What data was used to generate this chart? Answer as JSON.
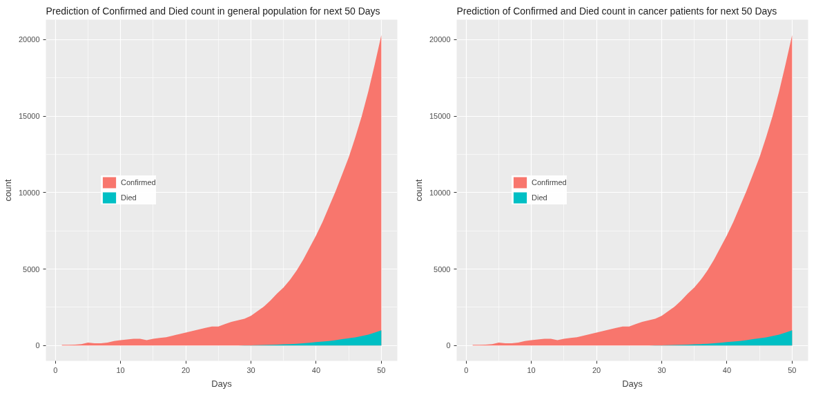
{
  "chart_data": [
    {
      "type": "area",
      "title": "Prediction of Confirmed and Died count in general population for next 50 Days",
      "xlabel": "Days",
      "ylabel": "count",
      "x": [
        1,
        2,
        3,
        4,
        5,
        6,
        7,
        8,
        9,
        10,
        11,
        12,
        13,
        14,
        15,
        16,
        17,
        18,
        19,
        20,
        21,
        22,
        23,
        24,
        25,
        26,
        27,
        28,
        29,
        30,
        31,
        32,
        33,
        34,
        35,
        36,
        37,
        38,
        39,
        40,
        41,
        42,
        43,
        44,
        45,
        46,
        47,
        48,
        49,
        50
      ],
      "series": [
        {
          "name": "Confirmed",
          "color": "#f8766d",
          "values": [
            50,
            50,
            60,
            100,
            200,
            150,
            150,
            200,
            300,
            350,
            400,
            450,
            450,
            350,
            450,
            500,
            550,
            650,
            750,
            850,
            950,
            1050,
            1150,
            1250,
            1250,
            1400,
            1550,
            1650,
            1750,
            1950,
            2250,
            2550,
            2950,
            3400,
            3800,
            4300,
            4900,
            5600,
            6400,
            7200,
            8100,
            9100,
            10100,
            11200,
            12300,
            13600,
            15000,
            16600,
            18400,
            20300
          ]
        },
        {
          "name": "Died",
          "color": "#00bfc4",
          "values": [
            null,
            null,
            null,
            null,
            null,
            null,
            null,
            null,
            null,
            null,
            null,
            null,
            null,
            null,
            null,
            null,
            null,
            0,
            0,
            0,
            0,
            0,
            0,
            10,
            10,
            10,
            10,
            10,
            20,
            20,
            30,
            40,
            50,
            60,
            80,
            100,
            120,
            150,
            190,
            230,
            260,
            300,
            350,
            420,
            480,
            540,
            620,
            720,
            850,
            1000
          ]
        }
      ],
      "xlim": [
        -1.45,
        52.45
      ],
      "ylim": [
        -1000,
        21300
      ],
      "xticks": [
        0,
        10,
        20,
        30,
        40,
        50
      ],
      "yticks": [
        0,
        5000,
        10000,
        15000,
        20000
      ],
      "grid": true,
      "legend": "left"
    },
    {
      "type": "area",
      "title": "Prediction of Confirmed and Died count in cancer patients for next 50 Days",
      "xlabel": "Days",
      "ylabel": "count",
      "x": [
        1,
        2,
        3,
        4,
        5,
        6,
        7,
        8,
        9,
        10,
        11,
        12,
        13,
        14,
        15,
        16,
        17,
        18,
        19,
        20,
        21,
        22,
        23,
        24,
        25,
        26,
        27,
        28,
        29,
        30,
        31,
        32,
        33,
        34,
        35,
        36,
        37,
        38,
        39,
        40,
        41,
        42,
        43,
        44,
        45,
        46,
        47,
        48,
        49,
        50
      ],
      "series": [
        {
          "name": "Confirmed",
          "color": "#f8766d",
          "values": [
            50,
            50,
            60,
            100,
            200,
            150,
            150,
            200,
            300,
            350,
            400,
            450,
            450,
            350,
            450,
            500,
            550,
            650,
            750,
            850,
            950,
            1050,
            1150,
            1250,
            1250,
            1400,
            1550,
            1650,
            1750,
            1950,
            2250,
            2550,
            2950,
            3400,
            3800,
            4300,
            4900,
            5600,
            6400,
            7200,
            8100,
            9100,
            10100,
            11200,
            12300,
            13600,
            15000,
            16600,
            18400,
            20300
          ]
        },
        {
          "name": "Died",
          "color": "#00bfc4",
          "values": [
            null,
            null,
            null,
            null,
            null,
            null,
            null,
            null,
            null,
            null,
            null,
            null,
            null,
            null,
            null,
            null,
            null,
            0,
            0,
            0,
            0,
            0,
            0,
            10,
            10,
            10,
            10,
            10,
            20,
            20,
            30,
            40,
            50,
            60,
            80,
            100,
            120,
            150,
            190,
            230,
            260,
            300,
            350,
            420,
            480,
            540,
            620,
            720,
            850,
            1000
          ]
        }
      ],
      "xlim": [
        -1.45,
        52.45
      ],
      "ylim": [
        -1000,
        21300
      ],
      "xticks": [
        0,
        10,
        20,
        30,
        40,
        50
      ],
      "yticks": [
        0,
        5000,
        10000,
        15000,
        20000
      ],
      "grid": true,
      "legend": "left"
    }
  ]
}
